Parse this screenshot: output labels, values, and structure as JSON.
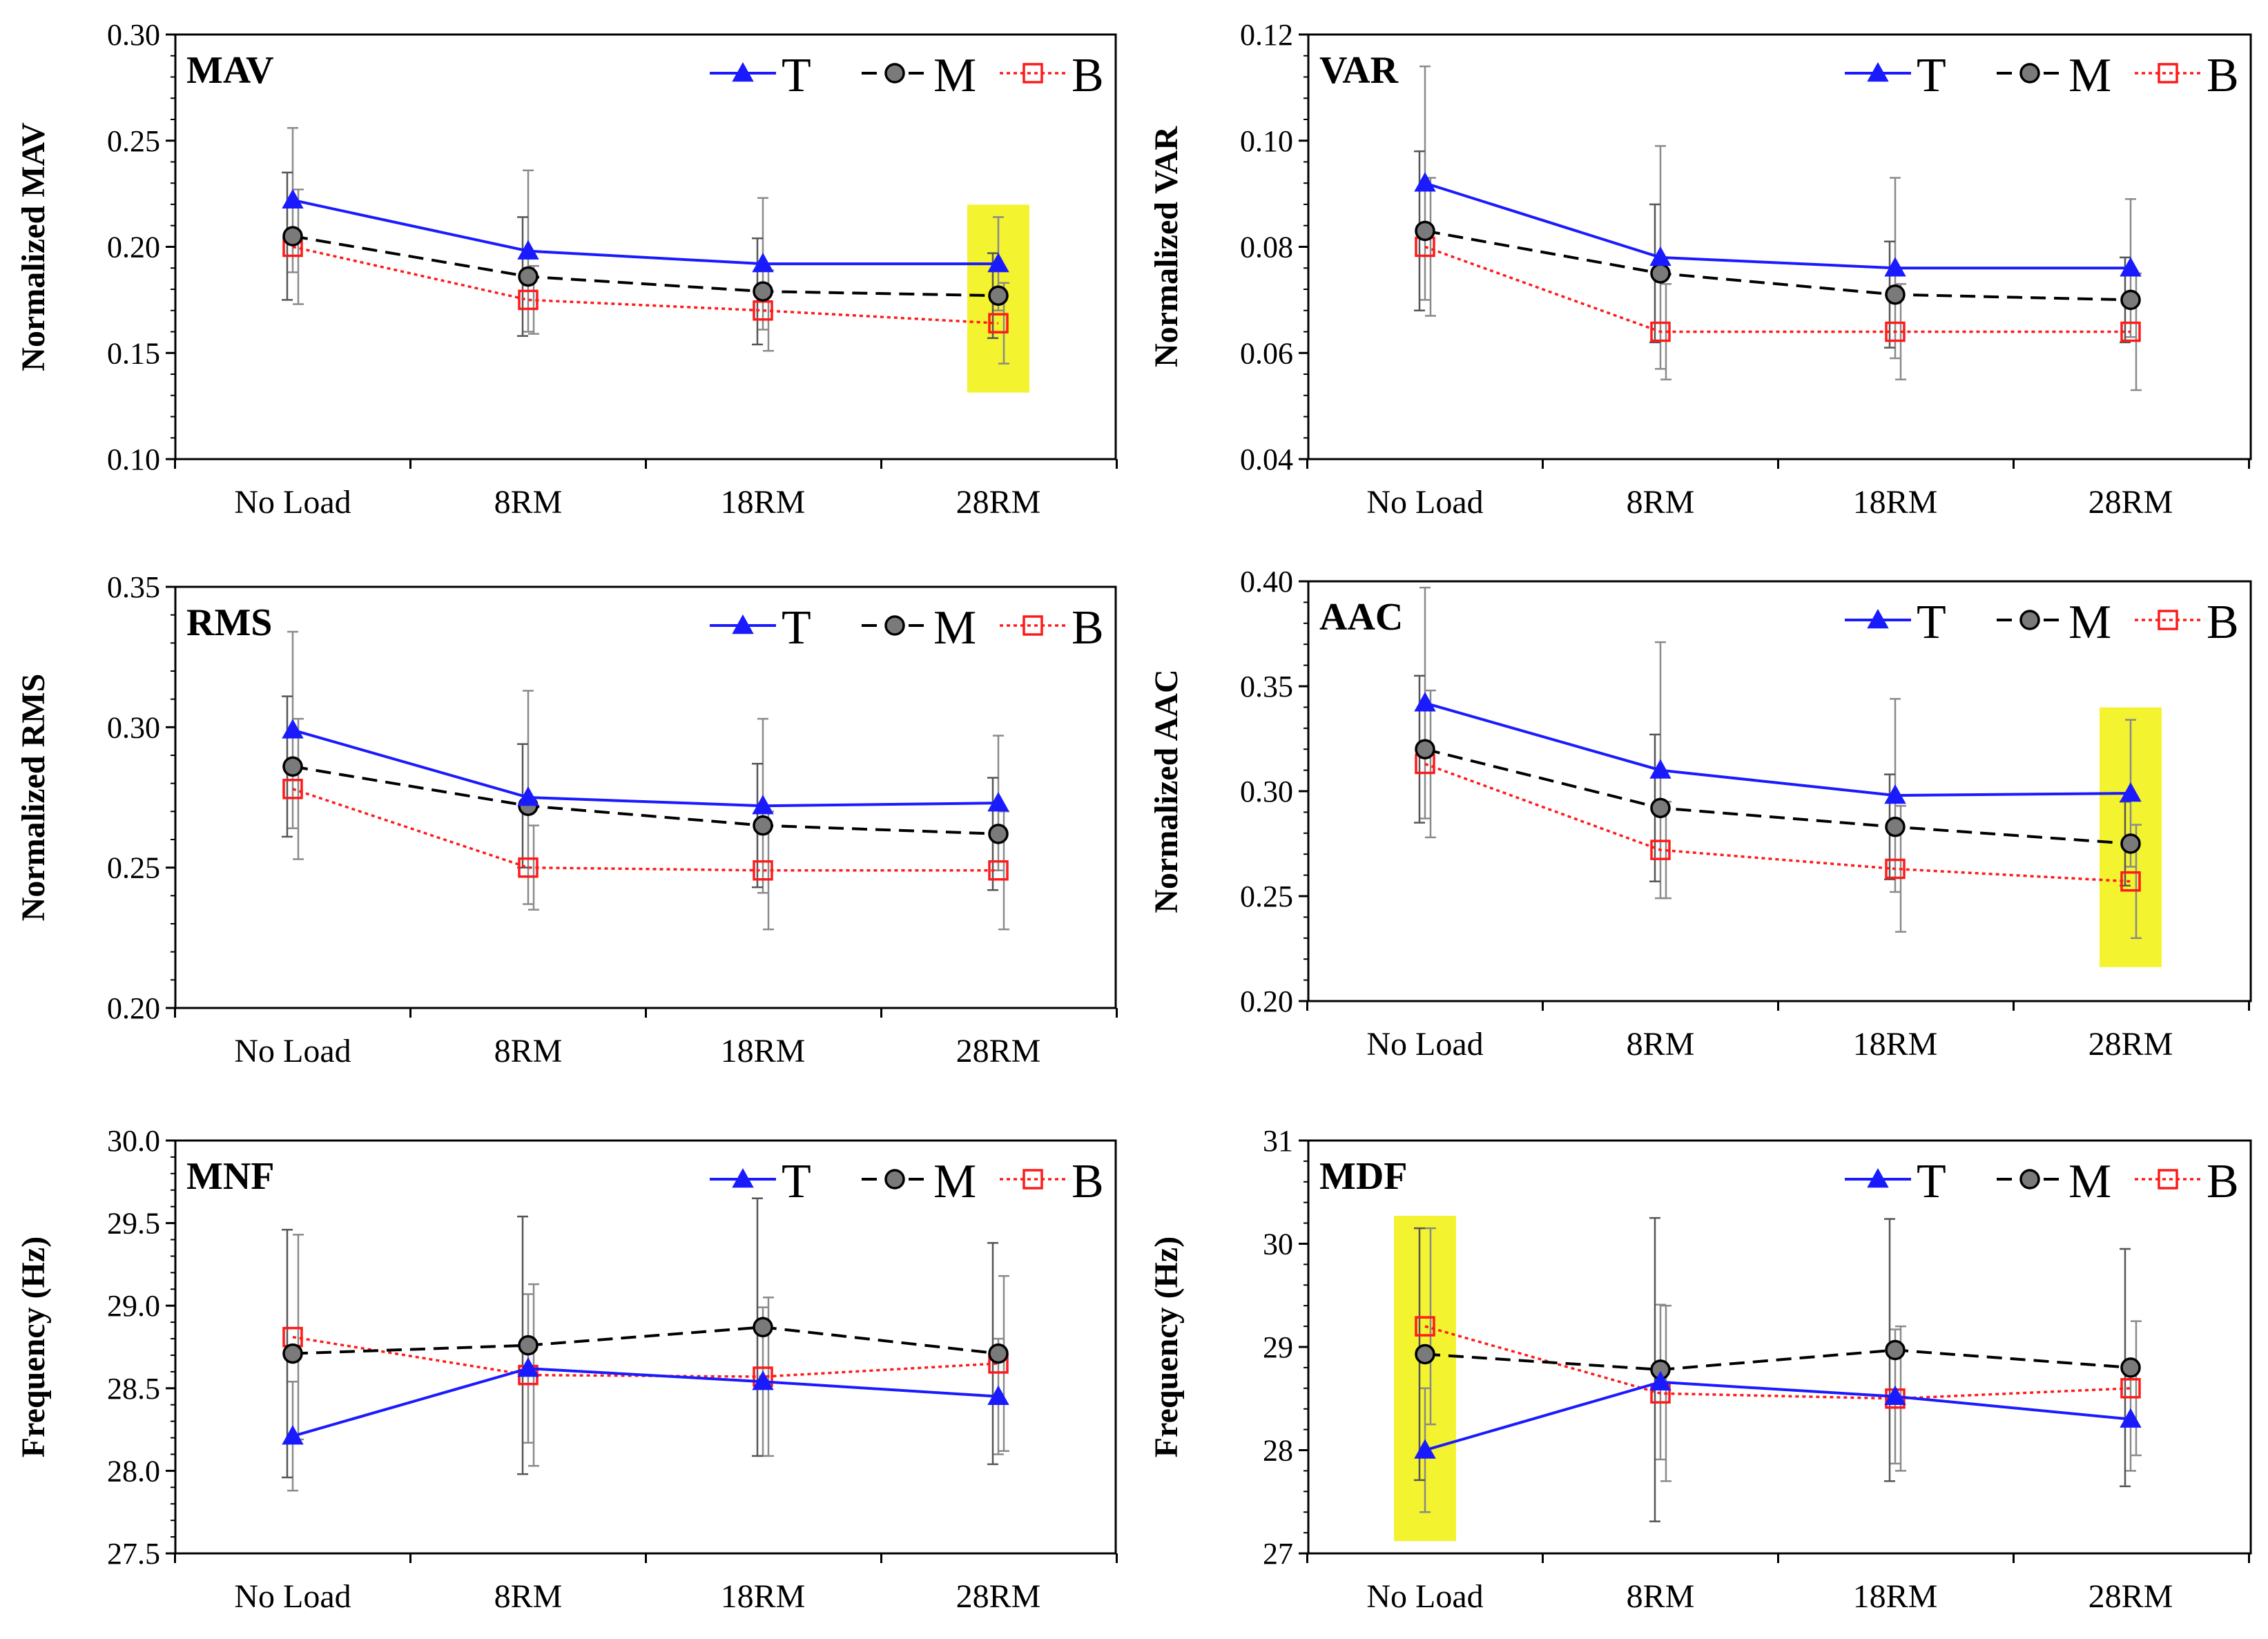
{
  "figure": {
    "legend_labels": [
      "T",
      "M",
      "B"
    ]
  },
  "colors": {
    "T": "#1a1aff",
    "M": "#000000",
    "M_marker_fill": "#7a7a7a",
    "B": "#ff1a1a",
    "highlight": "#f2f21a",
    "axis": "#000000",
    "error_bar": "#555555"
  },
  "chart_data": [
    {
      "type": "line",
      "title": "MAV",
      "ylabel": "Normalized MAV",
      "xlabel": "",
      "categories": [
        "No Load",
        "8RM",
        "18RM",
        "28RM"
      ],
      "ylim": [
        0.1,
        0.3
      ],
      "yticks": [
        0.1,
        0.15,
        0.2,
        0.25,
        0.3
      ],
      "ytick_labels": [
        "0.10",
        "0.15",
        "0.20",
        "0.25",
        "0.30"
      ],
      "legend": "top-right",
      "highlight_category": 3,
      "series": [
        {
          "name": "T",
          "values": [
            0.222,
            0.198,
            0.192,
            0.192
          ],
          "errors": [
            0.034,
            0.038,
            0.031,
            0.022
          ]
        },
        {
          "name": "M",
          "values": [
            0.205,
            0.186,
            0.179,
            0.177
          ],
          "errors": [
            0.03,
            0.028,
            0.025,
            0.02
          ]
        },
        {
          "name": "B",
          "values": [
            0.2,
            0.175,
            0.17,
            0.164
          ],
          "errors": [
            0.027,
            0.016,
            0.019,
            0.019
          ]
        }
      ]
    },
    {
      "type": "line",
      "title": "VAR",
      "ylabel": "Normalized VAR",
      "xlabel": "",
      "categories": [
        "No Load",
        "8RM",
        "18RM",
        "28RM"
      ],
      "ylim": [
        0.04,
        0.12
      ],
      "yticks": [
        0.04,
        0.06,
        0.08,
        0.1,
        0.12
      ],
      "ytick_labels": [
        "0.04",
        "0.06",
        "0.08",
        "0.10",
        "0.12"
      ],
      "legend": "top-right",
      "highlight_category": null,
      "series": [
        {
          "name": "T",
          "values": [
            0.092,
            0.078,
            0.076,
            0.076
          ],
          "errors": [
            0.022,
            0.021,
            0.017,
            0.013
          ]
        },
        {
          "name": "M",
          "values": [
            0.083,
            0.075,
            0.071,
            0.07
          ],
          "errors": [
            0.015,
            0.013,
            0.01,
            0.008
          ]
        },
        {
          "name": "B",
          "values": [
            0.08,
            0.064,
            0.064,
            0.064
          ],
          "errors": [
            0.013,
            0.009,
            0.009,
            0.011
          ]
        }
      ]
    },
    {
      "type": "line",
      "title": "RMS",
      "ylabel": "Normalized RMS",
      "xlabel": "",
      "categories": [
        "No Load",
        "8RM",
        "18RM",
        "28RM"
      ],
      "ylim": [
        0.2,
        0.35
      ],
      "yticks": [
        0.2,
        0.25,
        0.3,
        0.35
      ],
      "ytick_labels": [
        "0.20",
        "0.25",
        "0.30",
        "0.35"
      ],
      "legend": "top-right",
      "highlight_category": null,
      "series": [
        {
          "name": "T",
          "values": [
            0.299,
            0.275,
            0.272,
            0.273
          ],
          "errors": [
            0.035,
            0.038,
            0.031,
            0.024
          ]
        },
        {
          "name": "M",
          "values": [
            0.286,
            0.272,
            0.265,
            0.262
          ],
          "errors": [
            0.025,
            0.022,
            0.022,
            0.02
          ]
        },
        {
          "name": "B",
          "values": [
            0.278,
            0.25,
            0.249,
            0.249
          ],
          "errors": [
            0.025,
            0.015,
            0.021,
            0.021
          ]
        }
      ]
    },
    {
      "type": "line",
      "title": "AAC",
      "ylabel": "Normalized  AAC",
      "xlabel": "",
      "categories": [
        "No Load",
        "8RM",
        "18RM",
        "28RM"
      ],
      "ylim": [
        0.2,
        0.4
      ],
      "yticks": [
        0.2,
        0.25,
        0.3,
        0.35,
        0.4
      ],
      "ytick_labels": [
        "0.20",
        "0.25",
        "0.30",
        "0.35",
        "0.40"
      ],
      "legend": "top-right",
      "highlight_category": 3,
      "series": [
        {
          "name": "T",
          "values": [
            0.342,
            0.31,
            0.298,
            0.299
          ],
          "errors": [
            0.055,
            0.061,
            0.046,
            0.035
          ]
        },
        {
          "name": "M",
          "values": [
            0.32,
            0.292,
            0.283,
            0.275
          ],
          "errors": [
            0.035,
            0.035,
            0.025,
            0.02
          ]
        },
        {
          "name": "B",
          "values": [
            0.313,
            0.272,
            0.263,
            0.257
          ],
          "errors": [
            0.035,
            0.023,
            0.03,
            0.027
          ]
        }
      ]
    },
    {
      "type": "line",
      "title": "MNF",
      "ylabel": "Frequency (Hz)",
      "xlabel": "",
      "categories": [
        "No Load",
        "8RM",
        "18RM",
        "28RM"
      ],
      "ylim": [
        27.5,
        30.0
      ],
      "yticks": [
        27.5,
        28.0,
        28.5,
        29.0,
        29.5,
        30.0
      ],
      "ytick_labels": [
        "27.5",
        "28.0",
        "28.5",
        "29.0",
        "29.5",
        "30.0"
      ],
      "legend": "top-right",
      "highlight_category": null,
      "series": [
        {
          "name": "T",
          "values": [
            28.21,
            28.62,
            28.54,
            28.45
          ],
          "errors": [
            0.33,
            0.45,
            0.45,
            0.35
          ]
        },
        {
          "name": "M",
          "values": [
            28.71,
            28.76,
            28.87,
            28.71
          ],
          "errors": [
            0.75,
            0.78,
            0.78,
            0.67
          ]
        },
        {
          "name": "B",
          "values": [
            28.81,
            28.58,
            28.57,
            28.65
          ],
          "errors": [
            0.62,
            0.55,
            0.48,
            0.53
          ]
        }
      ]
    },
    {
      "type": "line",
      "title": "MDF",
      "ylabel": "Frequency (Hz)",
      "xlabel": "",
      "categories": [
        "No Load",
        "8RM",
        "18RM",
        "28RM"
      ],
      "ylim": [
        27,
        31
      ],
      "yticks": [
        27,
        28,
        29,
        30,
        31
      ],
      "ytick_labels": [
        "27",
        "28",
        "29",
        "30",
        "31"
      ],
      "legend": "top-right",
      "highlight_category": 0,
      "series": [
        {
          "name": "T",
          "values": [
            28.0,
            28.66,
            28.52,
            28.3
          ],
          "errors": [
            0.6,
            0.75,
            0.65,
            0.5
          ]
        },
        {
          "name": "M",
          "values": [
            28.93,
            28.78,
            28.97,
            28.8
          ],
          "errors": [
            1.22,
            1.47,
            1.27,
            1.15
          ]
        },
        {
          "name": "B",
          "values": [
            29.2,
            28.55,
            28.5,
            28.6
          ],
          "errors": [
            0.95,
            0.85,
            0.7,
            0.65
          ]
        }
      ]
    }
  ]
}
